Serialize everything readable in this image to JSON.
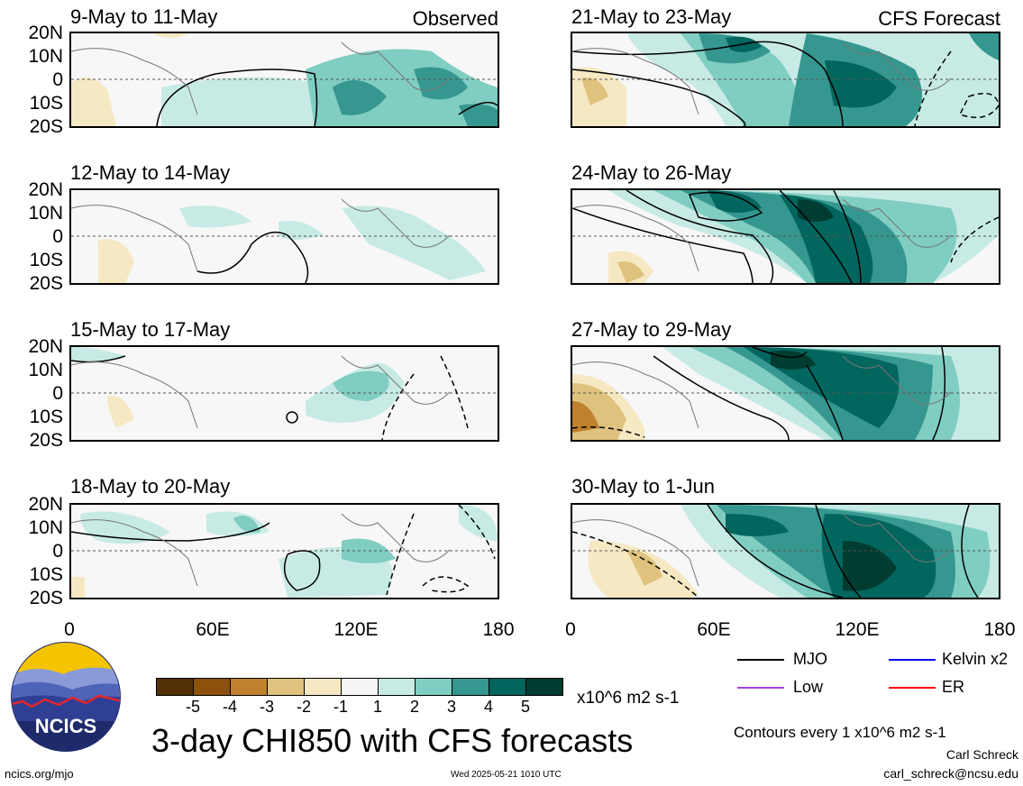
{
  "panels": [
    {
      "title": "9-May to 11-May",
      "label": "Observed"
    },
    {
      "title": "21-May to 23-May",
      "label": "CFS Forecast"
    },
    {
      "title": "12-May to 14-May",
      "label": ""
    },
    {
      "title": "24-May to 26-May",
      "label": ""
    },
    {
      "title": "15-May to 17-May",
      "label": ""
    },
    {
      "title": "27-May to 29-May",
      "label": ""
    },
    {
      "title": "18-May to 20-May",
      "label": ""
    },
    {
      "title": "30-May to 1-Jun",
      "label": ""
    }
  ],
  "y_ticks": [
    "20N",
    "10N",
    "0",
    "10S",
    "20S"
  ],
  "x_ticks": [
    "0",
    "60E",
    "120E",
    "180"
  ],
  "colorbar": {
    "labels": [
      "-5",
      "-4",
      "-3",
      "-2",
      "-1",
      "1",
      "2",
      "3",
      "4",
      "5"
    ],
    "colors": [
      "#543005",
      "#8c510a",
      "#bf812d",
      "#dfc27d",
      "#f6e8c3",
      "#f5f5f5",
      "#c7eae5",
      "#80cdc1",
      "#35978f",
      "#01665e",
      "#003c30"
    ],
    "units": "x10^6 m2 s-1"
  },
  "legend": {
    "items": [
      {
        "label": "MJO",
        "color": "#000000"
      },
      {
        "label": "Kelvin x2",
        "color": "#0000ff"
      },
      {
        "label": "Low",
        "color": "#a040e0"
      },
      {
        "label": "ER",
        "color": "#ff0000"
      }
    ]
  },
  "title": "3-day CHI850 with CFS forecasts",
  "contours_note": "Contours every 1 x10^6 m2 s-1",
  "logo_text": "NCICS",
  "footer": {
    "left": "ncics.org/mjo",
    "center": "Wed 2025-05-21 1010 UTC",
    "author": "Carl Schreck",
    "email": "carl_schreck@ncsu.edu"
  }
}
